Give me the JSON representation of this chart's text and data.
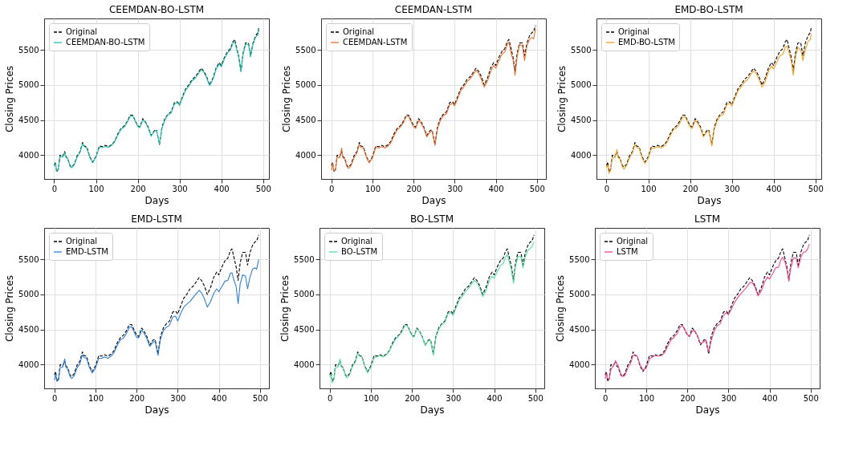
{
  "chart_data": [
    {
      "type": "line",
      "title": "CEEMDAN-BO-LSTM",
      "xlabel": "Days",
      "ylabel": "Closing Prices",
      "xlim": [
        -24,
        514
      ],
      "ylim": [
        3660,
        5950
      ],
      "xticks": [
        0,
        100,
        200,
        300,
        400,
        500
      ],
      "yticks": [
        4000,
        4500,
        5000,
        5500
      ],
      "grid": true,
      "legend": "top left",
      "x": [
        0,
        3,
        6,
        10,
        14,
        20,
        25,
        28,
        32,
        38,
        42,
        48,
        55,
        62,
        68,
        72,
        78,
        85,
        92,
        100,
        108,
        115,
        122,
        130,
        138,
        145,
        152,
        160,
        168,
        175,
        182,
        188,
        195,
        200,
        205,
        212,
        218,
        225,
        232,
        240,
        245,
        252,
        258,
        265,
        272,
        280,
        288,
        295,
        300,
        308,
        315,
        322,
        330,
        338,
        345,
        352,
        358,
        365,
        372,
        380,
        388,
        395,
        400,
        408,
        415,
        422,
        428,
        432,
        438,
        442,
        447,
        452,
        458,
        465,
        470,
        476,
        482,
        488,
        490
      ],
      "series": [
        {
          "name": "Original",
          "color": "#000000",
          "line_style": "dashed",
          "values": [
            3850,
            3900,
            3760,
            3800,
            4000,
            3980,
            4050,
            3980,
            3960,
            3850,
            3830,
            3870,
            3990,
            4050,
            4180,
            4130,
            4120,
            3980,
            3900,
            3980,
            4130,
            4120,
            4140,
            4120,
            4150,
            4200,
            4300,
            4380,
            4420,
            4480,
            4570,
            4570,
            4480,
            4420,
            4400,
            4520,
            4480,
            4400,
            4280,
            4350,
            4360,
            4150,
            4400,
            4520,
            4580,
            4620,
            4750,
            4760,
            4720,
            4850,
            4950,
            5000,
            5080,
            5120,
            5180,
            5240,
            5200,
            5120,
            5000,
            5100,
            5250,
            5320,
            5280,
            5400,
            5480,
            5520,
            5620,
            5650,
            5500,
            5400,
            5200,
            5450,
            5600,
            5600,
            5420,
            5600,
            5700,
            5750,
            5820
          ]
        },
        {
          "name": "CEEMDAN-BO-LSTM",
          "color": "#20c5b5",
          "line_style": "solid",
          "values": [
            3840,
            3880,
            3780,
            3790,
            3980,
            3970,
            4030,
            3970,
            3950,
            3840,
            3820,
            3860,
            3970,
            4040,
            4160,
            4120,
            4100,
            3970,
            3890,
            3970,
            4110,
            4110,
            4120,
            4110,
            4140,
            4190,
            4280,
            4370,
            4400,
            4470,
            4550,
            4560,
            4470,
            4410,
            4390,
            4500,
            4470,
            4390,
            4270,
            4340,
            4350,
            4160,
            4380,
            4500,
            4570,
            4600,
            4730,
            4750,
            4710,
            4830,
            4930,
            4980,
            5060,
            5100,
            5160,
            5220,
            5180,
            5100,
            4990,
            5080,
            5230,
            5300,
            5260,
            5380,
            5460,
            5500,
            5600,
            5620,
            5480,
            5390,
            5190,
            5430,
            5580,
            5580,
            5400,
            5580,
            5680,
            5720,
            5800
          ]
        }
      ]
    },
    {
      "type": "line",
      "title": "CEEMDAN-LSTM",
      "xlabel": "Days",
      "ylabel": "Closing Prices",
      "xlim": [
        -25,
        522
      ],
      "ylim": [
        3660,
        5950
      ],
      "xticks": [
        0,
        100,
        200,
        300,
        400,
        500
      ],
      "yticks": [
        4000,
        4500,
        5000,
        5500
      ],
      "grid": true,
      "legend": "top left",
      "x": [
        0,
        3,
        6,
        10,
        14,
        20,
        25,
        28,
        32,
        38,
        42,
        48,
        55,
        62,
        68,
        72,
        78,
        85,
        92,
        100,
        108,
        115,
        122,
        130,
        138,
        145,
        152,
        160,
        168,
        175,
        182,
        188,
        195,
        200,
        205,
        212,
        218,
        225,
        232,
        240,
        245,
        252,
        258,
        265,
        272,
        280,
        288,
        295,
        300,
        308,
        315,
        322,
        330,
        338,
        345,
        352,
        358,
        365,
        372,
        380,
        388,
        395,
        400,
        408,
        415,
        422,
        428,
        432,
        438,
        442,
        447,
        452,
        458,
        465,
        470,
        476,
        482,
        488,
        492,
        497
      ],
      "series": [
        {
          "name": "Original",
          "color": "#000000",
          "line_style": "dashed",
          "values": [
            3850,
            3900,
            3760,
            3800,
            4000,
            3980,
            4050,
            3980,
            3960,
            3850,
            3830,
            3870,
            3990,
            4050,
            4180,
            4130,
            4120,
            3980,
            3900,
            3980,
            4130,
            4120,
            4140,
            4120,
            4150,
            4200,
            4300,
            4380,
            4420,
            4480,
            4570,
            4570,
            4480,
            4420,
            4400,
            4520,
            4480,
            4400,
            4280,
            4350,
            4360,
            4150,
            4400,
            4520,
            4580,
            4620,
            4750,
            4760,
            4720,
            4850,
            4950,
            5000,
            5080,
            5120,
            5180,
            5240,
            5200,
            5120,
            5000,
            5100,
            5250,
            5320,
            5280,
            5400,
            5480,
            5520,
            5620,
            5650,
            5500,
            5400,
            5200,
            5450,
            5600,
            5600,
            5420,
            5600,
            5700,
            5750,
            5760,
            5850
          ]
        },
        {
          "name": "CEEMDAN-LSTM",
          "color": "#f07030",
          "line_style": "solid",
          "values": [
            3780,
            3880,
            3780,
            3790,
            3970,
            3960,
            4100,
            3960,
            3950,
            3830,
            3810,
            3850,
            3960,
            4030,
            4150,
            4110,
            4100,
            3970,
            3890,
            3960,
            4110,
            4100,
            4120,
            4100,
            4130,
            4180,
            4270,
            4360,
            4400,
            4460,
            4550,
            4550,
            4460,
            4400,
            4380,
            4490,
            4460,
            4380,
            4260,
            4330,
            4340,
            4140,
            4370,
            4490,
            4560,
            4590,
            4720,
            4740,
            4700,
            4820,
            4920,
            4970,
            5050,
            5090,
            5150,
            5210,
            5170,
            5080,
            4970,
            5060,
            5200,
            5280,
            5240,
            5350,
            5440,
            5470,
            5580,
            5610,
            5440,
            5360,
            5140,
            5400,
            5580,
            5560,
            5350,
            5560,
            5650,
            5680,
            5660,
            5800
          ]
        }
      ]
    },
    {
      "type": "line",
      "title": "EMD-BO-LSTM",
      "xlabel": "Days",
      "ylabel": "Closing Prices",
      "xlim": [
        -24,
        514
      ],
      "ylim": [
        3660,
        5950
      ],
      "xticks": [
        0,
        100,
        200,
        300,
        400,
        500
      ],
      "yticks": [
        4000,
        4500,
        5000,
        5500
      ],
      "grid": true,
      "legend": "top left",
      "x": [
        0,
        3,
        6,
        10,
        14,
        20,
        25,
        28,
        32,
        38,
        42,
        48,
        55,
        62,
        68,
        72,
        78,
        85,
        92,
        100,
        108,
        115,
        122,
        130,
        138,
        145,
        152,
        160,
        168,
        175,
        182,
        188,
        195,
        200,
        205,
        212,
        218,
        225,
        232,
        240,
        245,
        252,
        258,
        265,
        272,
        280,
        288,
        295,
        300,
        308,
        315,
        322,
        330,
        338,
        345,
        352,
        358,
        365,
        372,
        380,
        388,
        395,
        400,
        408,
        415,
        422,
        428,
        432,
        438,
        442,
        447,
        452,
        458,
        465,
        470,
        476,
        482,
        488,
        490
      ],
      "series": [
        {
          "name": "Original",
          "color": "#000000",
          "line_style": "dashed",
          "values": [
            3850,
            3900,
            3760,
            3800,
            4000,
            3980,
            4050,
            3980,
            3960,
            3850,
            3830,
            3870,
            3990,
            4050,
            4180,
            4130,
            4120,
            3980,
            3900,
            3980,
            4130,
            4120,
            4140,
            4120,
            4150,
            4200,
            4300,
            4380,
            4420,
            4480,
            4570,
            4570,
            4480,
            4420,
            4400,
            4520,
            4480,
            4400,
            4280,
            4350,
            4360,
            4150,
            4400,
            4520,
            4580,
            4620,
            4750,
            4760,
            4720,
            4850,
            4950,
            5000,
            5080,
            5120,
            5180,
            5240,
            5200,
            5120,
            5000,
            5100,
            5250,
            5320,
            5280,
            5400,
            5480,
            5520,
            5620,
            5650,
            5500,
            5400,
            5200,
            5450,
            5600,
            5600,
            5420,
            5600,
            5700,
            5750,
            5820
          ]
        },
        {
          "name": "EMD-BO-LSTM",
          "color": "#f5a020",
          "line_style": "solid",
          "values": [
            3820,
            3860,
            3740,
            3790,
            3960,
            3960,
            4080,
            3960,
            3950,
            3830,
            3800,
            3850,
            3960,
            4030,
            4150,
            4110,
            4100,
            3960,
            3880,
            3960,
            4100,
            4100,
            4120,
            4100,
            4130,
            4180,
            4270,
            4360,
            4390,
            4450,
            4540,
            4550,
            4460,
            4400,
            4380,
            4490,
            4460,
            4380,
            4260,
            4330,
            4340,
            4130,
            4370,
            4490,
            4560,
            4580,
            4720,
            4740,
            4700,
            4820,
            4920,
            4970,
            5040,
            5080,
            5150,
            5200,
            5170,
            5080,
            4970,
            5050,
            5200,
            5270,
            5230,
            5330,
            5420,
            5440,
            5540,
            5560,
            5430,
            5350,
            5140,
            5380,
            5540,
            5500,
            5350,
            5500,
            5620,
            5650,
            5730
          ]
        }
      ]
    },
    {
      "type": "line",
      "title": "EMD-LSTM",
      "xlabel": "Days",
      "ylabel": "Closing Prices",
      "xlim": [
        -25,
        522
      ],
      "ylim": [
        3660,
        5950
      ],
      "xticks": [
        0,
        100,
        200,
        300,
        400,
        500
      ],
      "yticks": [
        4000,
        4500,
        5000,
        5500
      ],
      "grid": true,
      "legend": "top left",
      "x": [
        0,
        3,
        6,
        10,
        14,
        20,
        25,
        28,
        32,
        38,
        42,
        48,
        55,
        62,
        68,
        72,
        78,
        85,
        92,
        100,
        108,
        115,
        122,
        130,
        138,
        145,
        152,
        160,
        168,
        175,
        182,
        188,
        195,
        200,
        205,
        212,
        218,
        225,
        232,
        240,
        245,
        252,
        258,
        265,
        272,
        280,
        288,
        295,
        300,
        308,
        315,
        322,
        330,
        338,
        345,
        352,
        358,
        365,
        372,
        380,
        388,
        395,
        400,
        408,
        415,
        422,
        428,
        432,
        438,
        442,
        447,
        452,
        458,
        465,
        470,
        476,
        482,
        488,
        492,
        497
      ],
      "series": [
        {
          "name": "Original",
          "color": "#000000",
          "line_style": "dashed",
          "values": [
            3850,
            3900,
            3760,
            3800,
            4000,
            3980,
            4050,
            3980,
            3960,
            3850,
            3830,
            3870,
            3990,
            4050,
            4180,
            4130,
            4120,
            3980,
            3900,
            3980,
            4130,
            4120,
            4140,
            4120,
            4150,
            4200,
            4300,
            4380,
            4420,
            4480,
            4570,
            4570,
            4480,
            4420,
            4400,
            4520,
            4480,
            4400,
            4280,
            4350,
            4360,
            4150,
            4400,
            4520,
            4580,
            4620,
            4750,
            4760,
            4720,
            4850,
            4950,
            5000,
            5080,
            5120,
            5180,
            5240,
            5200,
            5120,
            5000,
            5100,
            5250,
            5320,
            5280,
            5400,
            5480,
            5520,
            5620,
            5650,
            5500,
            5400,
            5200,
            5450,
            5600,
            5600,
            5420,
            5600,
            5700,
            5750,
            5760,
            5850
          ]
        },
        {
          "name": "EMD-LSTM",
          "color": "#3080d8",
          "line_style": "solid",
          "values": [
            3780,
            3860,
            3760,
            3780,
            3960,
            3960,
            4080,
            3960,
            3940,
            3830,
            3800,
            3840,
            3950,
            4010,
            4140,
            4100,
            4090,
            3960,
            3880,
            3950,
            4090,
            4090,
            4110,
            4090,
            4120,
            4170,
            4260,
            4350,
            4380,
            4440,
            4530,
            4540,
            4450,
            4390,
            4380,
            4490,
            4450,
            4370,
            4260,
            4320,
            4330,
            4130,
            4360,
            4480,
            4530,
            4560,
            4680,
            4690,
            4620,
            4740,
            4820,
            4860,
            4900,
            4960,
            5010,
            5060,
            5020,
            4940,
            4820,
            4900,
            5020,
            5080,
            5040,
            5120,
            5190,
            5200,
            5300,
            5310,
            5180,
            5120,
            4870,
            5150,
            5280,
            5260,
            5080,
            5250,
            5360,
            5380,
            5360,
            5500
          ]
        }
      ]
    },
    {
      "type": "line",
      "title": "BO-LSTM",
      "xlabel": "Days",
      "ylabel": "Closing Prices",
      "xlim": [
        -25,
        522
      ],
      "ylim": [
        3660,
        5950
      ],
      "xticks": [
        0,
        100,
        200,
        300,
        400,
        500
      ],
      "yticks": [
        4000,
        4500,
        5000,
        5500
      ],
      "grid": true,
      "legend": "top left",
      "x": [
        0,
        3,
        6,
        10,
        14,
        20,
        25,
        28,
        32,
        38,
        42,
        48,
        55,
        62,
        68,
        72,
        78,
        85,
        92,
        100,
        108,
        115,
        122,
        130,
        138,
        145,
        152,
        160,
        168,
        175,
        182,
        188,
        195,
        200,
        205,
        212,
        218,
        225,
        232,
        240,
        245,
        252,
        258,
        265,
        272,
        280,
        288,
        295,
        300,
        308,
        315,
        322,
        330,
        338,
        345,
        352,
        358,
        365,
        372,
        380,
        388,
        395,
        400,
        408,
        415,
        422,
        428,
        432,
        438,
        442,
        447,
        452,
        458,
        465,
        470,
        476,
        482,
        488,
        492,
        497
      ],
      "series": [
        {
          "name": "Original",
          "color": "#000000",
          "line_style": "dashed",
          "values": [
            3850,
            3900,
            3760,
            3800,
            4000,
            3980,
            4050,
            3980,
            3960,
            3850,
            3830,
            3870,
            3990,
            4050,
            4180,
            4130,
            4120,
            3980,
            3900,
            3980,
            4130,
            4120,
            4140,
            4120,
            4150,
            4200,
            4300,
            4380,
            4420,
            4480,
            4570,
            4570,
            4480,
            4420,
            4400,
            4520,
            4480,
            4400,
            4280,
            4350,
            4360,
            4150,
            4400,
            4520,
            4580,
            4620,
            4750,
            4760,
            4720,
            4850,
            4950,
            5000,
            5080,
            5120,
            5180,
            5240,
            5200,
            5120,
            5000,
            5100,
            5250,
            5320,
            5280,
            5400,
            5480,
            5520,
            5620,
            5650,
            5500,
            5400,
            5200,
            5450,
            5600,
            5600,
            5420,
            5600,
            5700,
            5750,
            5760,
            5850
          ]
        },
        {
          "name": "BO-LSTM",
          "color": "#50e0a0",
          "line_style": "solid",
          "values": [
            3820,
            3860,
            3740,
            3790,
            3960,
            3960,
            4080,
            3970,
            3950,
            3840,
            3810,
            3850,
            3970,
            4030,
            4160,
            4120,
            4110,
            3970,
            3880,
            3960,
            4100,
            4110,
            4130,
            4110,
            4140,
            4190,
            4280,
            4360,
            4410,
            4460,
            4550,
            4560,
            4470,
            4410,
            4390,
            4510,
            4470,
            4390,
            4270,
            4340,
            4350,
            4130,
            4380,
            4500,
            4570,
            4600,
            4730,
            4740,
            4700,
            4820,
            4920,
            4970,
            5040,
            5090,
            5150,
            5200,
            5170,
            5090,
            4970,
            5050,
            5200,
            5260,
            5230,
            5330,
            5410,
            5440,
            5540,
            5570,
            5440,
            5340,
            5160,
            5400,
            5540,
            5540,
            5380,
            5540,
            5630,
            5660,
            5680,
            5750
          ]
        }
      ]
    },
    {
      "type": "line",
      "title": "LSTM",
      "xlabel": "Days",
      "ylabel": "Closing Prices",
      "xlim": [
        -25,
        522
      ],
      "ylim": [
        3660,
        5950
      ],
      "xticks": [
        0,
        100,
        200,
        300,
        400,
        500
      ],
      "yticks": [
        4000,
        4500,
        5000,
        5500
      ],
      "grid": true,
      "legend": "top left",
      "x": [
        0,
        3,
        6,
        10,
        14,
        20,
        25,
        28,
        32,
        38,
        42,
        48,
        55,
        62,
        68,
        72,
        78,
        85,
        92,
        100,
        108,
        115,
        122,
        130,
        138,
        145,
        152,
        160,
        168,
        175,
        182,
        188,
        195,
        200,
        205,
        212,
        218,
        225,
        232,
        240,
        245,
        252,
        258,
        265,
        272,
        280,
        288,
        295,
        300,
        308,
        315,
        322,
        330,
        338,
        345,
        352,
        358,
        365,
        372,
        380,
        388,
        395,
        400,
        408,
        415,
        422,
        428,
        432,
        438,
        442,
        447,
        452,
        458,
        465,
        470,
        476,
        482,
        488,
        492,
        497
      ],
      "series": [
        {
          "name": "Original",
          "color": "#000000",
          "line_style": "dashed",
          "values": [
            3850,
            3900,
            3760,
            3800,
            4000,
            3980,
            4050,
            3980,
            3960,
            3850,
            3830,
            3870,
            3990,
            4050,
            4180,
            4130,
            4120,
            3980,
            3900,
            3980,
            4130,
            4120,
            4140,
            4120,
            4150,
            4200,
            4300,
            4380,
            4420,
            4480,
            4570,
            4570,
            4480,
            4420,
            4400,
            4520,
            4480,
            4400,
            4280,
            4350,
            4360,
            4150,
            4400,
            4520,
            4580,
            4620,
            4750,
            4760,
            4720,
            4850,
            4950,
            5000,
            5080,
            5120,
            5180,
            5240,
            5200,
            5120,
            5000,
            5100,
            5250,
            5320,
            5280,
            5400,
            5480,
            5520,
            5620,
            5650,
            5500,
            5400,
            5200,
            5450,
            5600,
            5600,
            5420,
            5600,
            5700,
            5750,
            5760,
            5850
          ]
        },
        {
          "name": "LSTM",
          "color": "#f04890",
          "line_style": "solid",
          "values": [
            3800,
            3870,
            3800,
            3790,
            3930,
            3980,
            4050,
            4020,
            3980,
            3870,
            3830,
            3840,
            3950,
            4020,
            4130,
            4140,
            4120,
            4000,
            3920,
            3950,
            4080,
            4110,
            4130,
            4120,
            4130,
            4170,
            4260,
            4350,
            4390,
            4440,
            4530,
            4560,
            4490,
            4430,
            4400,
            4480,
            4480,
            4410,
            4300,
            4320,
            4350,
            4180,
            4340,
            4470,
            4550,
            4580,
            4700,
            4740,
            4710,
            4800,
            4890,
            4950,
            5010,
            5060,
            5110,
            5170,
            5170,
            5100,
            4980,
            5050,
            5180,
            5250,
            5220,
            5300,
            5380,
            5390,
            5500,
            5530,
            5460,
            5360,
            5190,
            5380,
            5520,
            5520,
            5380,
            5530,
            5600,
            5610,
            5640,
            5720
          ]
        }
      ]
    }
  ]
}
